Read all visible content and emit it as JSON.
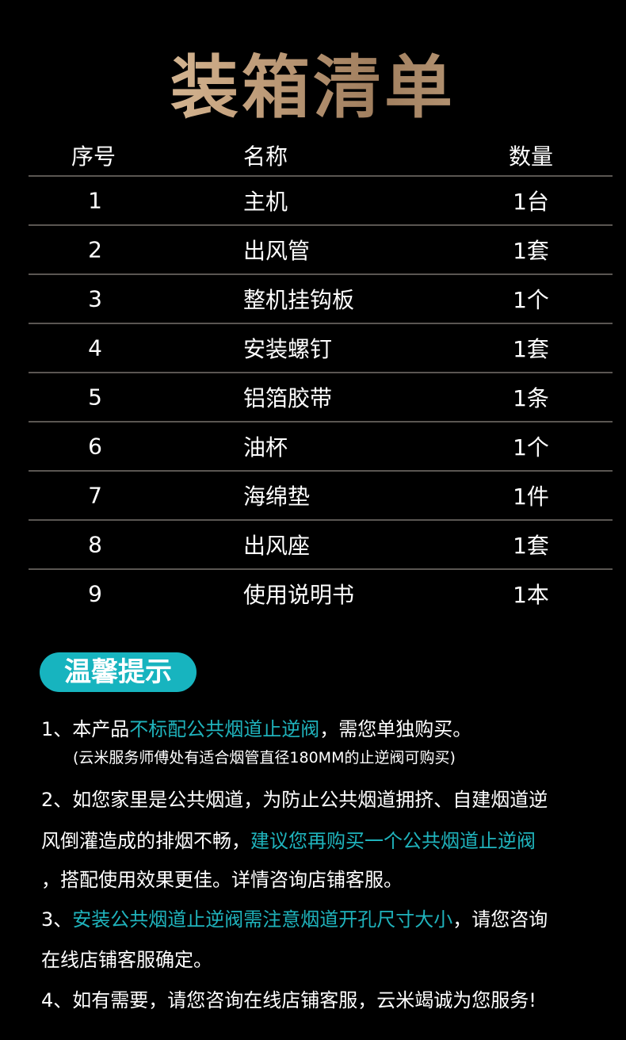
{
  "title": "装箱清单",
  "table": {
    "headers": [
      "序号",
      "名称",
      "数量"
    ],
    "rows": [
      [
        "1",
        "主机",
        "1台"
      ],
      [
        "2",
        "出风管",
        "1套"
      ],
      [
        "3",
        "整机挂钩板",
        "1个"
      ],
      [
        "4",
        "安装螺钉",
        "1套"
      ],
      [
        "5",
        "铝箔胶带",
        "1条"
      ],
      [
        "6",
        "油杯",
        "1个"
      ],
      [
        "7",
        "海绵垫",
        "1件"
      ],
      [
        "8",
        "出风座",
        "1套"
      ],
      [
        "9",
        "使用说明书",
        "1本"
      ]
    ]
  },
  "tips": {
    "badge": "温馨提示",
    "t1a": "1、本产品",
    "t1b": "不标配公共烟道止逆阀",
    "t1c": "，需您单独购买。",
    "t1note": "(云米服务师傅处有适合烟管直径180MM的止逆阀可购买)",
    "t2a": "2、如您家里是公共烟道，为防止公共烟道拥挤、自建烟道逆",
    "t2b": "风倒灌造成的排烟不畅，",
    "t2c": "建议您再购买一个公共烟道止逆阀",
    "t2d": "，搭配使用效果更佳。详情咨询店铺客服。",
    "t3a": "3、",
    "t3b": "安装公共烟道止逆阀需注意烟道开孔尺寸大小",
    "t3c": "，请您咨询",
    "t3d": "在线店铺客服确定。",
    "t4": "4、如有需要，请您咨询在线店铺客服，云米竭诚为您服务!"
  },
  "colors": {
    "accent": "#17b4bf",
    "highlight": "#1fb3bc",
    "title_gold": "#c9a783"
  }
}
